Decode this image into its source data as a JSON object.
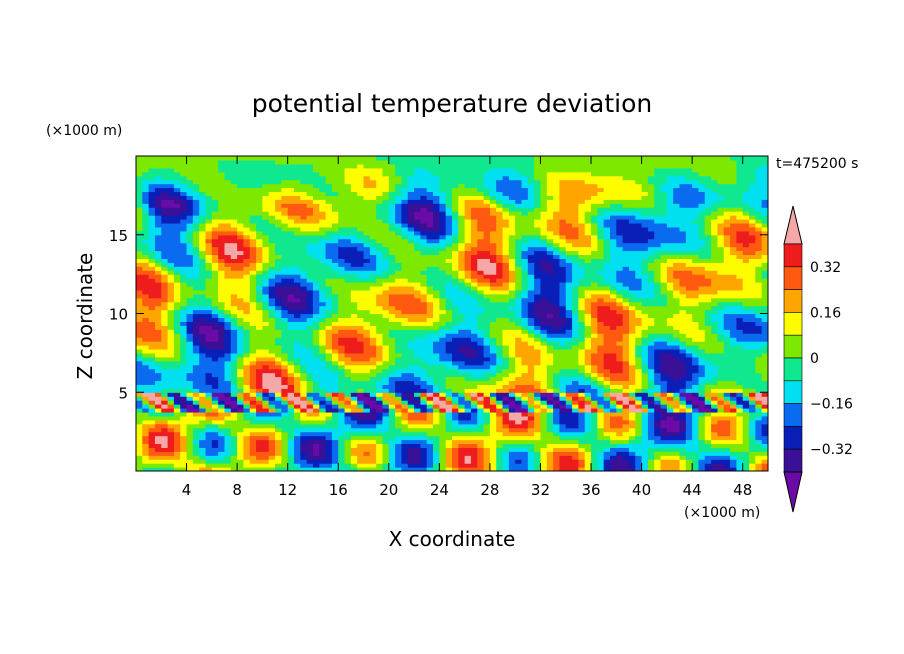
{
  "chart_data": {
    "type": "heatmap",
    "title": "potential temperature deviation",
    "xlabel": "X coordinate",
    "ylabel": "Z coordinate",
    "x_unit": "(×1000 m)",
    "y_unit": "(×1000 m)",
    "time_label": "t=475200 s",
    "xlim": [
      0,
      50
    ],
    "ylim": [
      0,
      20
    ],
    "x_ticks": [
      4,
      8,
      12,
      16,
      20,
      24,
      28,
      32,
      36,
      40,
      44,
      48
    ],
    "y_ticks": [
      5,
      10,
      15
    ],
    "colorbar": {
      "levels": [
        -0.4,
        -0.32,
        -0.24,
        -0.16,
        -0.08,
        0,
        0.08,
        0.16,
        0.24,
        0.32,
        0.4
      ],
      "tick_values": [
        0.32,
        0.16,
        0,
        -0.16,
        -0.32
      ],
      "tick_labels": [
        "0.32",
        "0.16",
        "0",
        "−0.16",
        "−0.32"
      ],
      "colors": [
        "#6a0ba8",
        "#3a1096",
        "#0a1fb8",
        "#0a6af0",
        "#00e0f0",
        "#10e890",
        "#7de800",
        "#fdfd00",
        "#ffa500",
        "#ff5a10",
        "#ee1c1c",
        "#f5a8a8"
      ]
    },
    "field_description_components": [
      {
        "x": 10,
        "z": 17,
        "value": -0.3
      },
      {
        "x": 20,
        "z": 12,
        "value": 0.3
      },
      {
        "x": 26,
        "z": 14,
        "value": 0.35
      },
      {
        "x": 36,
        "z": 12,
        "value": 0.4
      },
      {
        "x": 44,
        "z": 14,
        "value": -0.35
      }
    ]
  }
}
